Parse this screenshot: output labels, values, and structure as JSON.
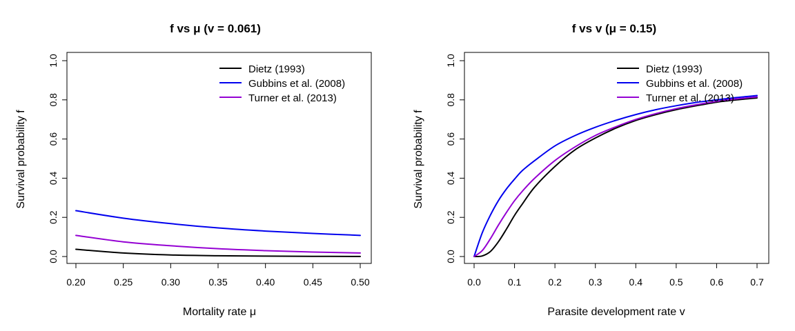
{
  "chart_data": [
    {
      "type": "line",
      "title": "f vs μ (v = 0.061)",
      "xlabel": "Mortality rate μ",
      "ylabel": "Survival probability f",
      "xlim": [
        0.2,
        0.5
      ],
      "ylim": [
        0.0,
        1.0
      ],
      "xticks": [
        "0.20",
        "0.25",
        "0.30",
        "0.35",
        "0.40",
        "0.45",
        "0.50"
      ],
      "yticks": [
        "0.0",
        "0.2",
        "0.4",
        "0.6",
        "0.8",
        "1.0"
      ],
      "legend_position": "top-right",
      "series": [
        {
          "name": "Dietz (1993)",
          "color": "#000000",
          "x": [
            0.2,
            0.25,
            0.3,
            0.35,
            0.4,
            0.45,
            0.5
          ],
          "y": [
            0.037,
            0.018,
            0.008,
            0.004,
            0.002,
            0.001,
            0.0005
          ]
        },
        {
          "name": "Gubbins et al. (2008)",
          "color": "#0000ee",
          "x": [
            0.2,
            0.25,
            0.3,
            0.35,
            0.4,
            0.45,
            0.5
          ],
          "y": [
            0.234,
            0.196,
            0.168,
            0.146,
            0.13,
            0.118,
            0.108
          ]
        },
        {
          "name": "Turner et al. (2013)",
          "color": "#9400d3",
          "x": [
            0.2,
            0.25,
            0.3,
            0.35,
            0.4,
            0.45,
            0.5
          ],
          "y": [
            0.108,
            0.075,
            0.055,
            0.04,
            0.03,
            0.023,
            0.018
          ]
        }
      ]
    },
    {
      "type": "line",
      "title": "f vs v (μ = 0.15)",
      "xlabel": "Parasite development rate v",
      "ylabel": "Survival probability f",
      "xlim": [
        0.0,
        0.7
      ],
      "ylim": [
        0.0,
        1.0
      ],
      "xticks": [
        "0.0",
        "0.1",
        "0.2",
        "0.3",
        "0.4",
        "0.5",
        "0.6",
        "0.7"
      ],
      "yticks": [
        "0.0",
        "0.2",
        "0.4",
        "0.6",
        "0.8",
        "1.0"
      ],
      "legend_position": "top-right",
      "series": [
        {
          "name": "Dietz (1993)",
          "color": "#000000",
          "x": [
            0.0,
            0.02,
            0.04,
            0.06,
            0.08,
            0.1,
            0.12,
            0.15,
            0.2,
            0.25,
            0.3,
            0.35,
            0.4,
            0.45,
            0.5,
            0.55,
            0.6,
            0.65,
            0.7
          ],
          "y": [
            0.0,
            0.003,
            0.025,
            0.075,
            0.14,
            0.21,
            0.27,
            0.355,
            0.46,
            0.545,
            0.605,
            0.655,
            0.695,
            0.725,
            0.75,
            0.77,
            0.788,
            0.8,
            0.81
          ]
        },
        {
          "name": "Gubbins et al. (2008)",
          "color": "#0000ee",
          "x": [
            0.0,
            0.02,
            0.04,
            0.06,
            0.08,
            0.1,
            0.12,
            0.15,
            0.2,
            0.25,
            0.3,
            0.35,
            0.4,
            0.45,
            0.5,
            0.55,
            0.6,
            0.65,
            0.7
          ],
          "y": [
            0.0,
            0.12,
            0.21,
            0.285,
            0.345,
            0.395,
            0.44,
            0.49,
            0.565,
            0.618,
            0.66,
            0.695,
            0.725,
            0.75,
            0.77,
            0.787,
            0.8,
            0.812,
            0.822
          ]
        },
        {
          "name": "Turner et al. (2013)",
          "color": "#9400d3",
          "x": [
            0.0,
            0.02,
            0.04,
            0.06,
            0.08,
            0.1,
            0.12,
            0.15,
            0.2,
            0.25,
            0.3,
            0.35,
            0.4,
            0.45,
            0.5,
            0.55,
            0.6,
            0.65,
            0.7
          ],
          "y": [
            0.0,
            0.03,
            0.09,
            0.16,
            0.225,
            0.285,
            0.335,
            0.4,
            0.49,
            0.56,
            0.618,
            0.662,
            0.7,
            0.73,
            0.755,
            0.775,
            0.792,
            0.805,
            0.815
          ]
        }
      ]
    }
  ]
}
